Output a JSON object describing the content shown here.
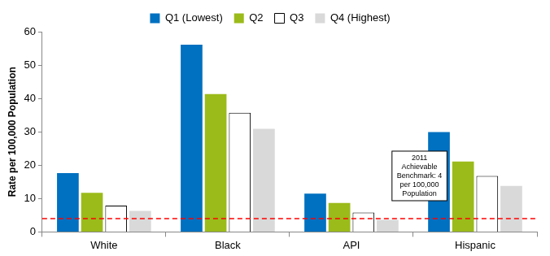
{
  "chart_data": {
    "type": "bar",
    "categories": [
      "White",
      "Black",
      "API",
      "Hispanic"
    ],
    "series": [
      {
        "name": "Q1 (Lowest)",
        "color": "#0070c0",
        "values": [
          17.6,
          56.1,
          11.5,
          29.9
        ]
      },
      {
        "name": "Q2",
        "color": "#9bbb1a",
        "values": [
          11.7,
          41.3,
          8.7,
          21.1
        ]
      },
      {
        "name": "Q3",
        "color": "#ffffff",
        "values": [
          7.9,
          35.7,
          5.8,
          16.8
        ]
      },
      {
        "name": "Q4 (Highest)",
        "color": "#d9d9d9",
        "values": [
          6.3,
          30.9,
          3.6,
          13.8
        ]
      }
    ],
    "ylabel": "Rate per 100,000 Population",
    "ylim": [
      0,
      60
    ],
    "yticks": [
      0,
      10,
      20,
      30,
      40,
      50,
      60
    ],
    "grid": false,
    "legend": "top",
    "benchmark": {
      "value": 4,
      "label": [
        "2011",
        "Achievable",
        "Benchmark: 4",
        "per 100,000",
        "Population"
      ],
      "color": "#ff0000",
      "line_style": "dashed"
    }
  }
}
